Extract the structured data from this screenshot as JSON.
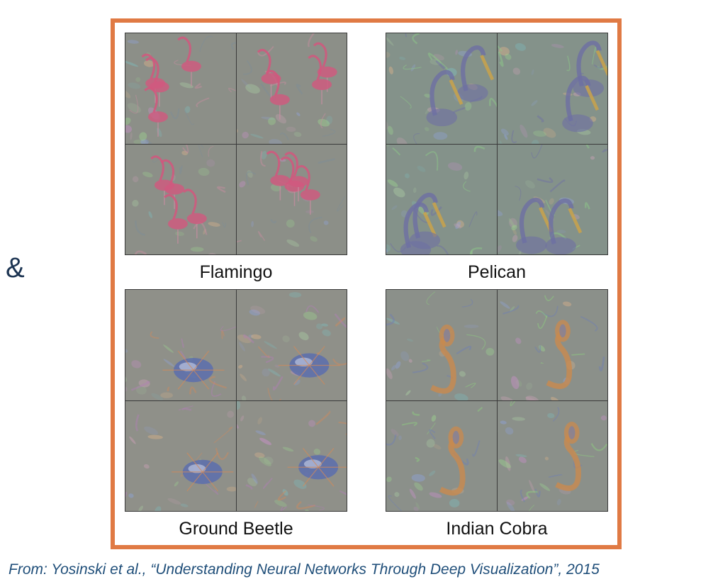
{
  "ampersand": "&",
  "panels": [
    {
      "caption": "Flamingo",
      "palette": {
        "base": "#8c8f88",
        "accent": "#d2577e",
        "accent2": "#7c8e9a",
        "accent3": "#c98da2"
      },
      "subject_icon": "flamingo-icon"
    },
    {
      "caption": "Pelican",
      "palette": {
        "base": "#84928a",
        "accent": "#c9a24a",
        "accent2": "#6e6fa3",
        "accent3": "#8fcf87"
      },
      "subject_icon": "pelican-icon"
    },
    {
      "caption": "Ground Beetle",
      "palette": {
        "base": "#8f9089",
        "accent": "#5c6fae",
        "accent2": "#d28a5a",
        "accent3": "#b27fb6"
      },
      "subject_icon": "beetle-icon"
    },
    {
      "caption": "Indian Cobra",
      "palette": {
        "base": "#8b908a",
        "accent": "#c98a4e",
        "accent2": "#6e7fb3",
        "accent3": "#8fd07f"
      },
      "subject_icon": "cobra-icon"
    }
  ],
  "source": "From: Yosinski et al., “Understanding Neural Networks Through Deep Visualization”, 2015",
  "colors": {
    "frame": "#e07a44",
    "ampersand": "#1c3452",
    "source_text": "#1f4e79"
  }
}
